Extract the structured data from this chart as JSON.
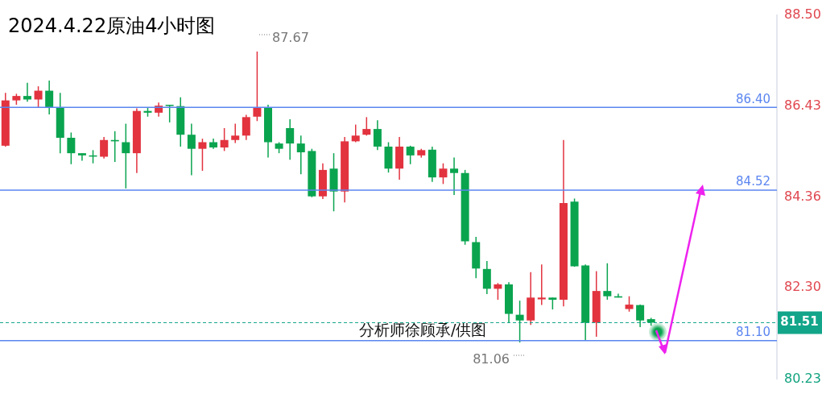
{
  "chart_data": {
    "type": "candlestick",
    "title": "2024.4.22原油4小时图",
    "categories": [
      null,
      null,
      null,
      null,
      null,
      null,
      null,
      null,
      null,
      null,
      null,
      null,
      null,
      null,
      null,
      null,
      null,
      null,
      null,
      null,
      null,
      null,
      null,
      null,
      null,
      null,
      null,
      null,
      null,
      null,
      null,
      null,
      null,
      null,
      null,
      null,
      null,
      null,
      null,
      null,
      null,
      null,
      null,
      null,
      null,
      null,
      null,
      null,
      null,
      null,
      null,
      null,
      null,
      null,
      null,
      null,
      null,
      null,
      null,
      null,
      null,
      null,
      null,
      null,
      null,
      null,
      null,
      null,
      null,
      null,
      null
    ],
    "ohlc": [
      [
        85.53,
        86.73,
        85.51,
        86.56
      ],
      [
        86.56,
        86.71,
        86.46,
        86.66
      ],
      [
        86.66,
        86.96,
        86.53,
        86.58
      ],
      [
        86.58,
        86.88,
        86.39,
        86.78
      ],
      [
        86.78,
        87.01,
        86.24,
        86.39
      ],
      [
        86.39,
        86.73,
        85.36,
        85.71
      ],
      [
        85.71,
        85.83,
        85.11,
        85.36
      ],
      [
        85.36,
        85.36,
        85.19,
        85.31
      ],
      [
        85.31,
        85.43,
        85.13,
        85.29
      ],
      [
        85.28,
        85.73,
        85.24,
        85.66
      ],
      [
        85.66,
        85.86,
        85.16,
        85.63
      ],
      [
        85.61,
        86.03,
        84.56,
        85.36
      ],
      [
        85.36,
        86.38,
        84.91,
        86.32
      ],
      [
        86.32,
        86.39,
        86.19,
        86.28
      ],
      [
        86.28,
        86.51,
        86.19,
        86.44
      ],
      [
        86.46,
        86.46,
        86.06,
        86.44
      ],
      [
        86.43,
        86.63,
        85.51,
        85.78
      ],
      [
        85.78,
        86.03,
        84.86,
        85.46
      ],
      [
        85.46,
        85.69,
        84.96,
        85.61
      ],
      [
        85.61,
        85.69,
        85.46,
        85.49
      ],
      [
        85.49,
        85.93,
        85.41,
        85.66
      ],
      [
        85.66,
        86.03,
        85.59,
        85.76
      ],
      [
        85.76,
        86.23,
        85.66,
        86.18
      ],
      [
        86.19,
        87.67,
        86.09,
        86.39
      ],
      [
        86.39,
        86.46,
        85.26,
        85.61
      ],
      [
        85.58,
        85.61,
        85.36,
        85.46
      ],
      [
        85.93,
        86.13,
        85.21,
        85.58
      ],
      [
        85.58,
        85.76,
        84.88,
        85.38
      ],
      [
        85.41,
        85.46,
        84.36,
        84.38
      ],
      [
        84.38,
        85.13,
        84.32,
        84.98
      ],
      [
        85.01,
        85.36,
        84.04,
        84.49
      ],
      [
        84.49,
        85.73,
        84.24,
        85.63
      ],
      [
        85.63,
        86.01,
        85.61,
        85.76
      ],
      [
        85.78,
        86.18,
        85.76,
        85.91
      ],
      [
        85.91,
        86.11,
        85.43,
        85.51
      ],
      [
        85.51,
        85.61,
        84.92,
        85.01
      ],
      [
        85.01,
        85.73,
        84.76,
        85.51
      ],
      [
        85.51,
        85.53,
        85.11,
        85.31
      ],
      [
        85.31,
        85.46,
        85.26,
        85.43
      ],
      [
        85.44,
        85.51,
        84.71,
        84.81
      ],
      [
        84.81,
        85.13,
        84.66,
        85.01
      ],
      [
        85.01,
        85.26,
        84.41,
        84.91
      ],
      [
        84.91,
        84.98,
        83.28,
        83.36
      ],
      [
        83.34,
        83.46,
        82.52,
        82.74
      ],
      [
        82.73,
        82.91,
        82.16,
        82.28
      ],
      [
        82.28,
        82.41,
        82.03,
        82.38
      ],
      [
        82.38,
        82.43,
        81.51,
        81.71
      ],
      [
        81.69,
        82.01,
        81.06,
        81.56
      ],
      [
        81.56,
        82.66,
        81.46,
        82.08
      ],
      [
        82.04,
        82.83,
        81.91,
        82.08
      ],
      [
        82.08,
        82.08,
        81.81,
        82.03
      ],
      [
        82.03,
        85.66,
        81.88,
        84.23
      ],
      [
        84.26,
        84.33,
        82.78,
        82.79
      ],
      [
        82.81,
        82.83,
        81.11,
        81.51
      ],
      [
        81.51,
        82.68,
        81.19,
        82.23
      ],
      [
        82.23,
        82.86,
        82.03,
        82.11
      ],
      [
        82.11,
        82.17,
        82.08,
        82.08
      ],
      [
        81.82,
        82.11,
        81.76,
        81.92
      ],
      [
        81.91,
        81.92,
        81.41,
        81.56
      ],
      [
        81.59,
        81.62,
        81.44,
        81.51
      ],
      null,
      null,
      null,
      null,
      null,
      null,
      null,
      null,
      null,
      null,
      null
    ],
    "colors": [
      "#e2333f",
      "#e2333f",
      "#0aa44f",
      "#e2333f",
      "#0aa44f",
      "#0aa44f",
      "#0aa44f",
      "#0aa44f",
      "#0aa44f",
      "#e2333f",
      "#0aa44f",
      "#0aa44f",
      "#e2333f",
      "#0aa44f",
      "#e2333f",
      "#0aa44f",
      "#0aa44f",
      "#0aa44f",
      "#e2333f",
      "#0aa44f",
      "#e2333f",
      "#e2333f",
      "#e2333f",
      "#e2333f",
      "#0aa44f",
      "#0aa44f",
      "#0aa44f",
      "#0aa44f",
      "#0aa44f",
      "#e2333f",
      "#0aa44f",
      "#e2333f",
      "#e2333f",
      "#e2333f",
      "#0aa44f",
      "#0aa44f",
      "#e2333f",
      "#0aa44f",
      "#e2333f",
      "#0aa44f",
      "#e2333f",
      "#0aa44f",
      "#0aa44f",
      "#0aa44f",
      "#0aa44f",
      "#e2333f",
      "#0aa44f",
      "#0aa44f",
      "#e2333f",
      "#e2333f",
      "#0aa44f",
      "#e2333f",
      "#0aa44f",
      "#0aa44f",
      "#e2333f",
      "#0aa44f",
      "#0aa44f",
      "#e2333f",
      "#0aa44f",
      "#0aa44f",
      null,
      null,
      null,
      null,
      null,
      null,
      null,
      null,
      null,
      null,
      null
    ],
    "ylim": [
      80.23,
      88.5
    ],
    "yticks": [
      {
        "value": 80.23,
        "label": "80.23"
      },
      {
        "value": 82.3,
        "label": "82.30"
      },
      {
        "value": 84.36,
        "label": "84.36"
      },
      {
        "value": 86.43,
        "label": "86.43"
      },
      {
        "value": 88.5,
        "label": "88.50"
      }
    ],
    "tick_labels": "y",
    "ref_lines": [
      {
        "axis": "y",
        "value": 86.4,
        "label": "86.40",
        "color": "#5b85f0"
      },
      {
        "axis": "y",
        "value": 84.52,
        "label": "84.52",
        "color": "#5b85f0"
      },
      {
        "axis": "y",
        "value": 81.1,
        "label": "81.10",
        "color": "#5b85f0"
      },
      {
        "axis": "y",
        "value": 81.51,
        "label": "81.51",
        "color": "#12a58a",
        "line_style": "dashed"
      }
    ],
    "annotations": [
      "87.67",
      "81.06",
      "分析师徐顾承/供图"
    ]
  }
}
